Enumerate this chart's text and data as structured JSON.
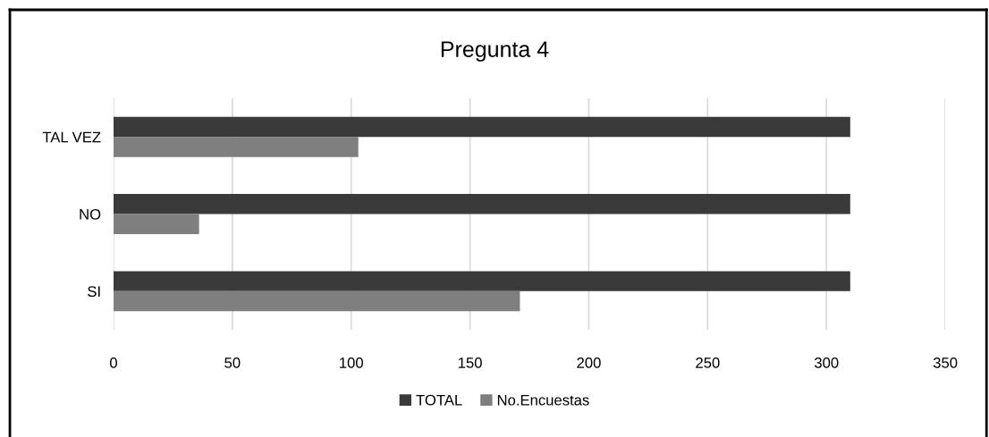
{
  "chart_data": {
    "type": "bar",
    "orientation": "horizontal",
    "title": "Pregunta 4",
    "categories": [
      "TAL VEZ",
      "NO",
      "SI"
    ],
    "series": [
      {
        "name": "TOTAL",
        "color": "#3a3a3a",
        "values": [
          310,
          310,
          310
        ]
      },
      {
        "name": "No.Encuestas",
        "color": "#7f7f7f",
        "values": [
          103,
          36,
          171
        ]
      }
    ],
    "xlim": [
      0,
      350
    ],
    "xticks": [
      0,
      50,
      100,
      150,
      200,
      250,
      300,
      350
    ],
    "grid": "x",
    "legend": "bottom"
  }
}
